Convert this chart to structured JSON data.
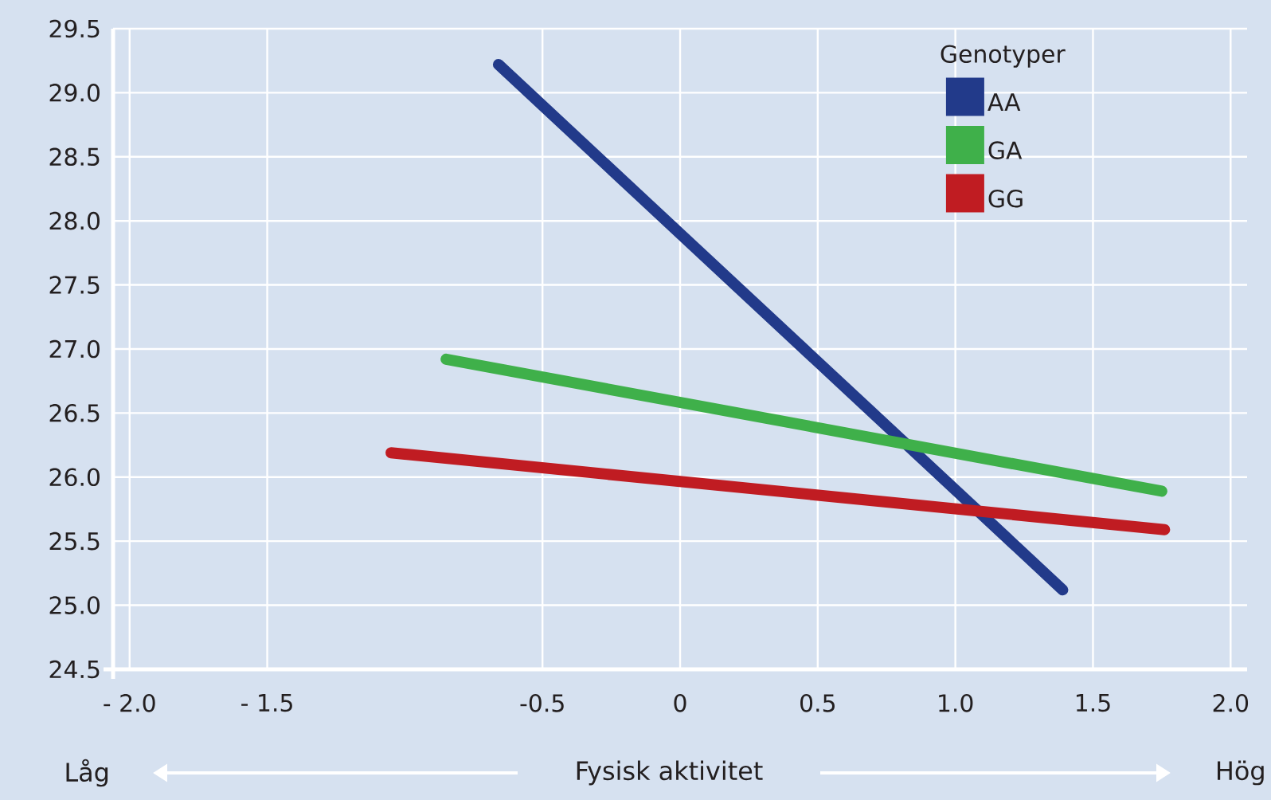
{
  "chart_data": {
    "type": "line",
    "xlabel": "Fysisk aktivitet",
    "legend_title": "Genotyper",
    "series": [
      {
        "name": "AA",
        "color": "#223a8a",
        "x": [
          -0.66,
          1.39
        ],
        "values": [
          29.22,
          25.12
        ]
      },
      {
        "name": "GA",
        "color": "#3fb04a",
        "x": [
          -0.85,
          1.75
        ],
        "values": [
          26.92,
          25.89
        ]
      },
      {
        "name": "GG",
        "color": "#c01c22",
        "x": [
          -1.05,
          1.76
        ],
        "values": [
          26.19,
          25.59
        ]
      }
    ],
    "xlim": [
      -2.06,
      2.06
    ],
    "xticks": [
      {
        "value": -2.0,
        "label": "- 2.0"
      },
      {
        "value": -1.5,
        "label": "- 1.5"
      },
      {
        "value": -0.5,
        "label": "-0.5"
      },
      0,
      {
        "value": 0.5,
        "label": "0.5"
      },
      {
        "value": 1.0,
        "label": "1.0"
      },
      {
        "value": 1.5,
        "label": "1.5"
      },
      {
        "value": 2.0,
        "label": "2.0"
      }
    ],
    "ylim": [
      24.5,
      29.5
    ],
    "yticks": [
      {
        "value": 24.5,
        "label": "24.5"
      },
      {
        "value": 25.0,
        "label": "25.0"
      },
      {
        "value": 25.5,
        "label": "25.5"
      },
      {
        "value": 26.0,
        "label": "26.0"
      },
      {
        "value": 26.5,
        "label": "26.5"
      },
      {
        "value": 27.0,
        "label": "27.0"
      },
      {
        "value": 27.5,
        "label": "27.5"
      },
      {
        "value": 28.0,
        "label": "28.0"
      },
      {
        "value": 28.5,
        "label": "28.5"
      },
      {
        "value": 29.0,
        "label": "29.0"
      },
      {
        "value": 29.5,
        "label": "29.5"
      }
    ],
    "grid": true,
    "legend": "top right",
    "marker": "none",
    "line_style": "solid",
    "annotations": [
      "Låg",
      "Hög"
    ]
  }
}
